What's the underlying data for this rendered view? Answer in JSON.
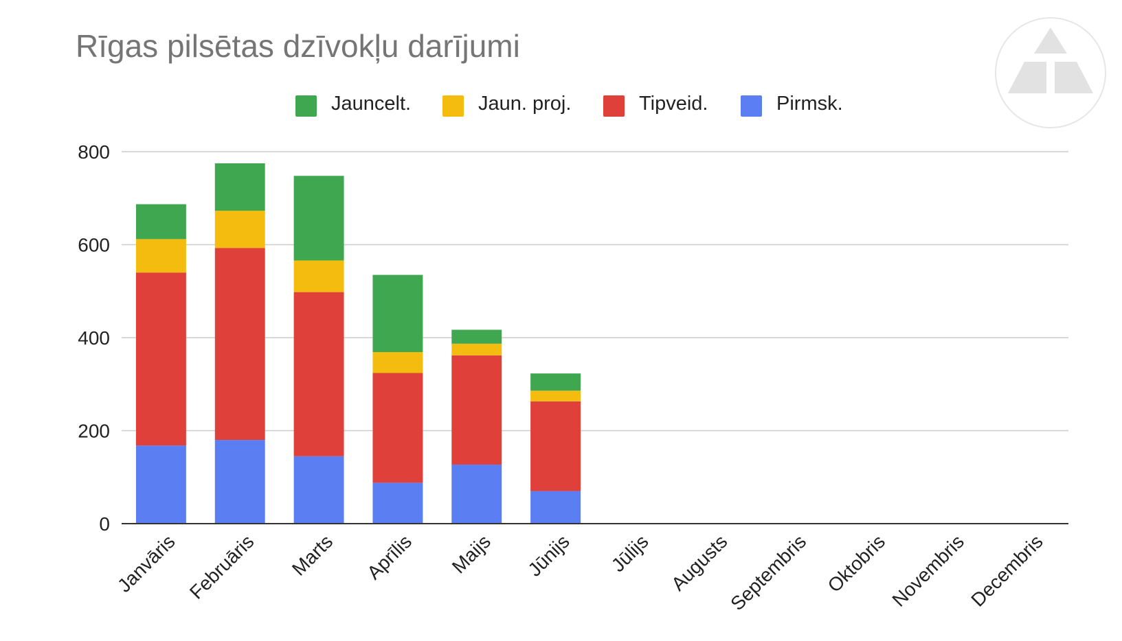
{
  "chart_data": {
    "type": "bar",
    "stacked": true,
    "title": "Rīgas pilsētas dzīvokļu darījumi",
    "xlabel": "",
    "ylabel": "",
    "ylim": [
      0,
      800
    ],
    "yticks": [
      0,
      200,
      400,
      600,
      800
    ],
    "grid": true,
    "legend_position": "top",
    "categories": [
      "Janvāris",
      "Februāris",
      "Marts",
      "Aprīlis",
      "Maijs",
      "Jūnijs",
      "Jūlijs",
      "Augusts",
      "Septembris",
      "Oktobris",
      "Novembris",
      "Decembris"
    ],
    "series": [
      {
        "name": "Pirmsk.",
        "color": "#5b7ff3",
        "values": [
          168,
          180,
          145,
          88,
          127,
          70,
          null,
          null,
          null,
          null,
          null,
          null
        ]
      },
      {
        "name": "Tipveid.",
        "color": "#e0403a",
        "values": [
          372,
          413,
          353,
          236,
          235,
          193,
          null,
          null,
          null,
          null,
          null,
          null
        ]
      },
      {
        "name": "Jaun. proj.",
        "color": "#f4bc0f",
        "values": [
          72,
          80,
          68,
          45,
          25,
          23,
          null,
          null,
          null,
          null,
          null,
          null
        ]
      },
      {
        "name": "Jauncelt.",
        "color": "#3ea74f",
        "values": [
          75,
          102,
          182,
          166,
          30,
          37,
          null,
          null,
          null,
          null,
          null,
          null
        ]
      }
    ],
    "legend_order": [
      "Jauncelt.",
      "Jaun. proj.",
      "Tipveid.",
      "Pirmsk."
    ]
  }
}
